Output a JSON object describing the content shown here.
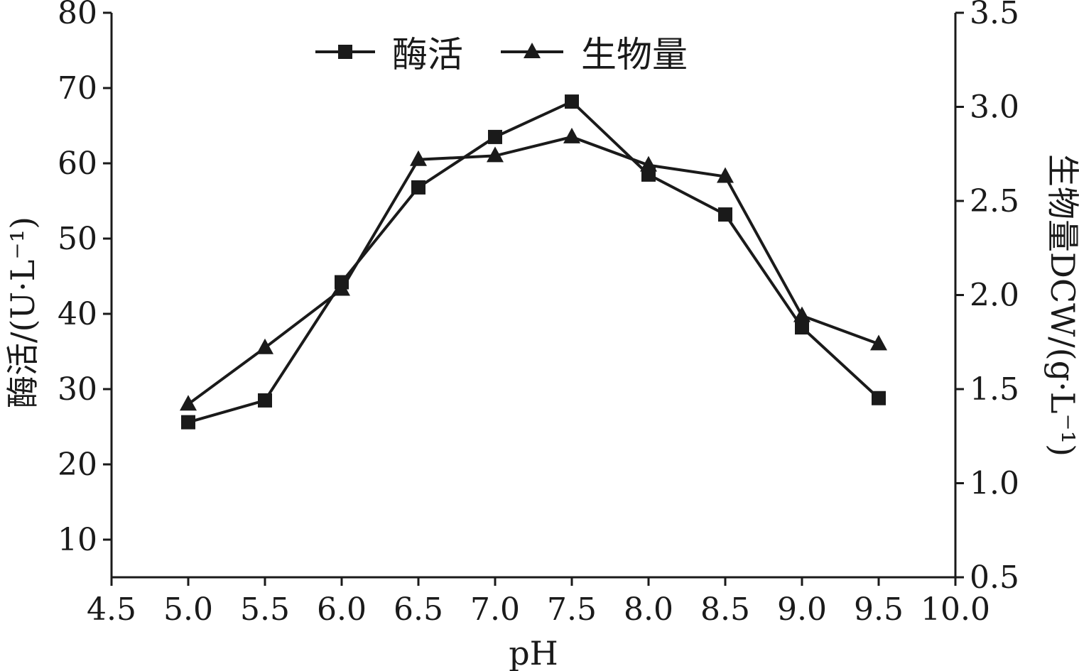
{
  "chart_data": {
    "type": "line",
    "xlabel": "pH",
    "ylabel_left": "酶活/(U·L⁻¹)",
    "ylabel_right": "生物量DCW/(g·L⁻¹)",
    "x_ticks": [
      "4.5",
      "5.0",
      "5.5",
      "6.0",
      "6.5",
      "7.0",
      "7.5",
      "8.0",
      "8.5",
      "9.0",
      "9.5",
      "10.0"
    ],
    "y_left_ticks": [
      "10",
      "20",
      "30",
      "40",
      "50",
      "60",
      "70",
      "80"
    ],
    "y_right_ticks": [
      "0.5",
      "1.0",
      "1.5",
      "2.0",
      "2.5",
      "3.0",
      "3.5"
    ],
    "xlim": [
      4.5,
      10.0
    ],
    "ylim_left": [
      5,
      80
    ],
    "ylim_right": [
      0.5,
      3.5
    ],
    "legend_position": "top-center",
    "grid": false,
    "series": [
      {
        "name": "酶活",
        "axis": "left",
        "marker": "square",
        "x": [
          5.0,
          5.5,
          6.0,
          6.5,
          7.0,
          7.5,
          8.0,
          8.5,
          9.0,
          9.5
        ],
        "values": [
          25.6,
          28.5,
          44.2,
          56.8,
          63.5,
          68.2,
          58.5,
          53.2,
          38.2,
          28.8
        ]
      },
      {
        "name": "生物量",
        "axis": "right",
        "marker": "triangle",
        "x": [
          5.0,
          5.5,
          6.0,
          6.5,
          7.0,
          7.5,
          8.0,
          8.5,
          9.0,
          9.5
        ],
        "values": [
          1.42,
          1.72,
          2.03,
          2.72,
          2.74,
          2.84,
          2.69,
          2.63,
          1.89,
          1.74
        ]
      }
    ]
  }
}
